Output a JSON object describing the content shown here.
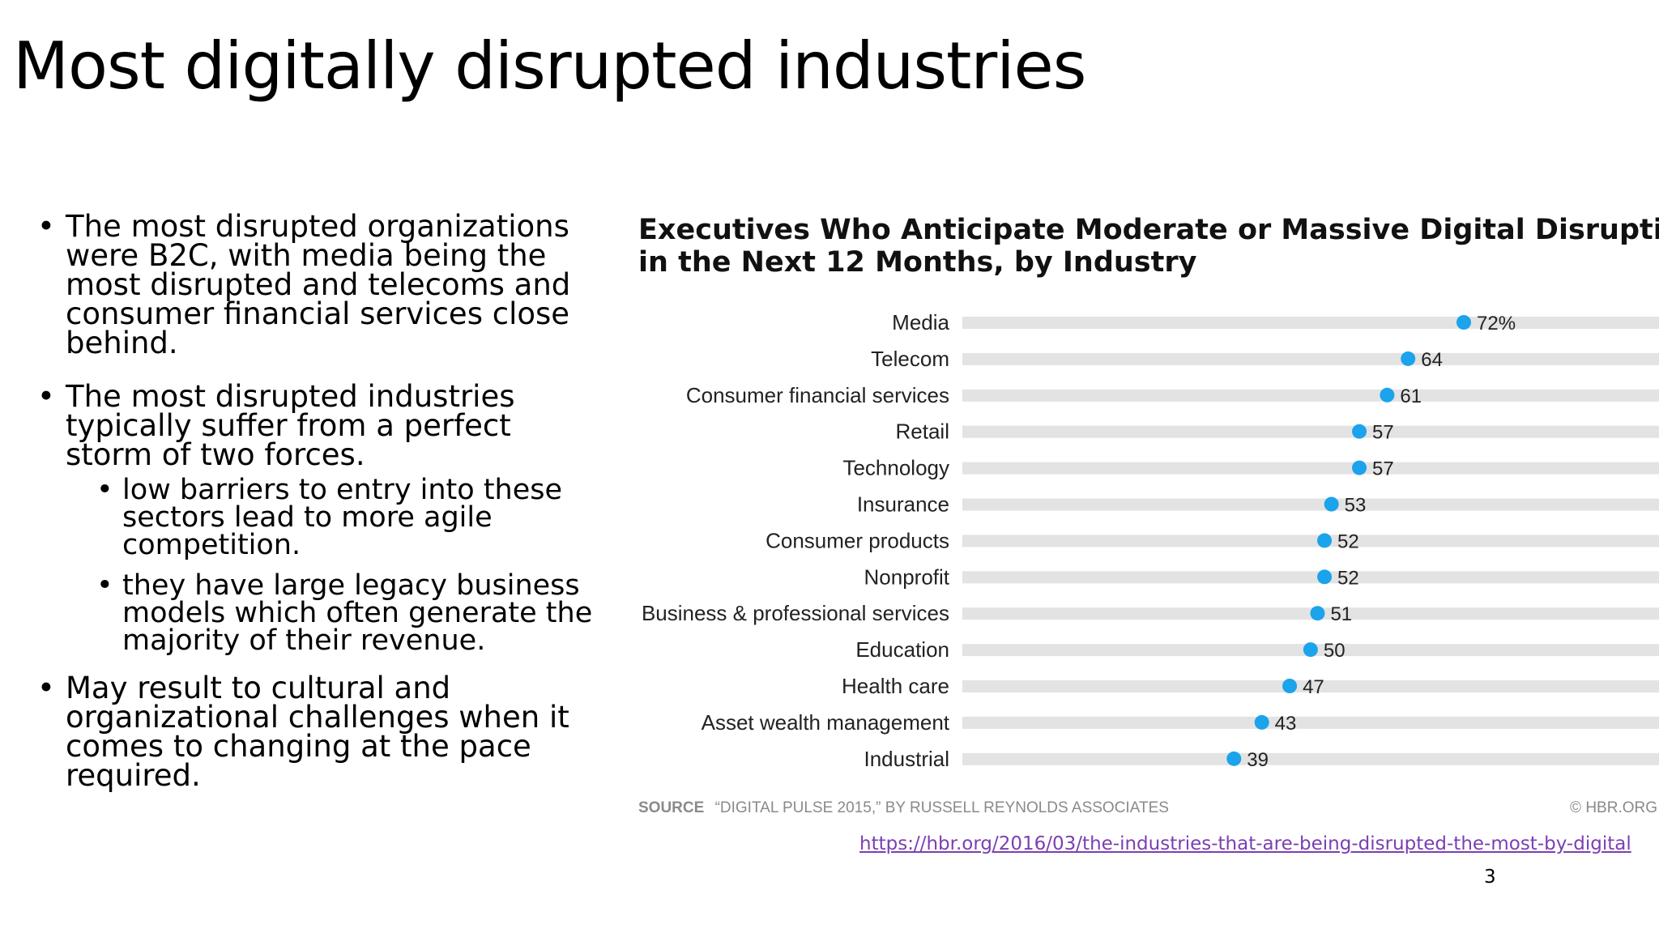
{
  "slide": {
    "title": "Most digitally disrupted industries",
    "bullets": [
      "The most disrupted organizations were B2C, with media being the most disrupted and telecoms and consumer financial services close behind.",
      "The most disrupted industries typically suffer from a perfect storm of two forces.",
      "May result to cultural and organizational challenges when it comes to changing at the pace required."
    ],
    "sub_bullets": [
      "low barriers to entry into these sectors lead to more agile competition.",
      "they have large legacy business models which often generate the majority of their revenue."
    ],
    "link": "https://hbr.org/2016/03/the-industries-that-are-being-disrupted-the-most-by-digital",
    "page_number": "3"
  },
  "chart_data": {
    "type": "scatter",
    "title_lines": [
      "Executives Who Anticipate Moderate or Massive Digital Disruption",
      "in the Next 12 Months, by Industry"
    ],
    "categories": [
      "Media",
      "Telecom",
      "Consumer financial services",
      "Retail",
      "Technology",
      "Insurance",
      "Consumer products",
      "Nonprofit",
      "Business & professional services",
      "Education",
      "Health care",
      "Asset wealth management",
      "Industrial"
    ],
    "values": [
      72,
      64,
      61,
      57,
      57,
      53,
      52,
      52,
      51,
      50,
      47,
      43,
      39
    ],
    "value_labels": [
      "72%",
      "64",
      "61",
      "57",
      "57",
      "53",
      "52",
      "52",
      "51",
      "50",
      "47",
      "43",
      "39"
    ],
    "xlim": [
      0,
      100
    ],
    "dot_color": "#1ba3ec",
    "track_color": "#e3e3e3",
    "source_label": "SOURCE",
    "source_text": "“DIGITAL PULSE 2015,” BY RUSSELL REYNOLDS ASSOCIATES",
    "credit": "© HBR.ORG"
  }
}
